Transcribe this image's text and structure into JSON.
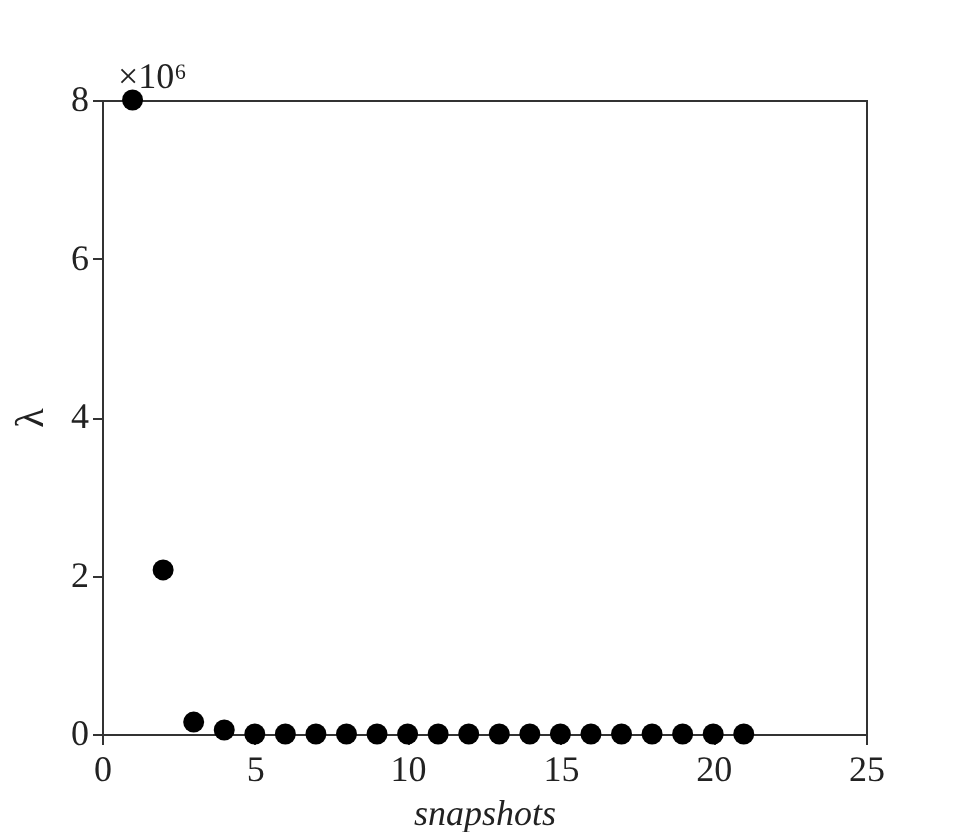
{
  "chart_data": {
    "type": "scatter",
    "xlabel": "snapshots",
    "ylabel": "λ",
    "annotations": [
      "×10⁶"
    ],
    "x": [
      1,
      2,
      3,
      4,
      5,
      6,
      7,
      8,
      9,
      10,
      11,
      12,
      13,
      14,
      15,
      16,
      17,
      18,
      19,
      20,
      21
    ],
    "series": [
      {
        "color": "#000000",
        "values": [
          8,
          2.07,
          0.15,
          0.05,
          0,
          0,
          0,
          0,
          0,
          0,
          0,
          0,
          0,
          0,
          0,
          0,
          0,
          0,
          0,
          0,
          0
        ]
      }
    ],
    "xlim": [
      0,
      25
    ],
    "xticks": [
      0,
      5,
      10,
      15,
      20,
      25
    ],
    "ylim": [
      0,
      8
    ],
    "yticks": [
      0,
      2,
      4,
      6,
      8
    ],
    "marker": "circle",
    "grid": false
  }
}
